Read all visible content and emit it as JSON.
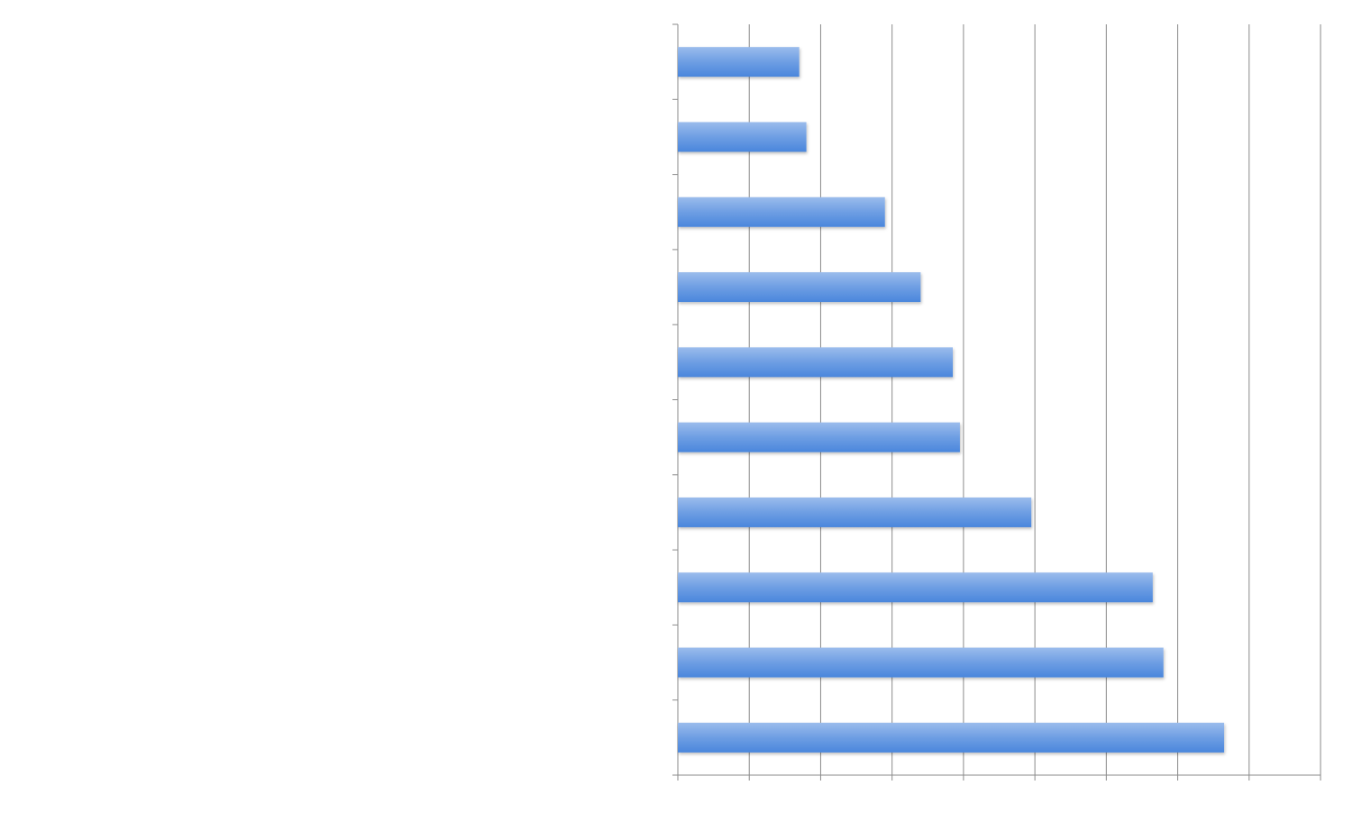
{
  "chart_data": {
    "type": "barh",
    "categories": [
      null,
      null,
      null,
      null,
      null,
      null,
      null,
      null,
      null,
      null
    ],
    "values": [
      1.7,
      1.8,
      2.9,
      3.4,
      3.85,
      3.95,
      4.95,
      6.65,
      6.8,
      7.65
    ],
    "color": "#4a86dc",
    "xlim": [
      0,
      9
    ],
    "xticks": [
      0,
      1,
      2,
      3,
      4,
      5,
      6,
      7,
      8,
      9
    ],
    "grid": true
  }
}
